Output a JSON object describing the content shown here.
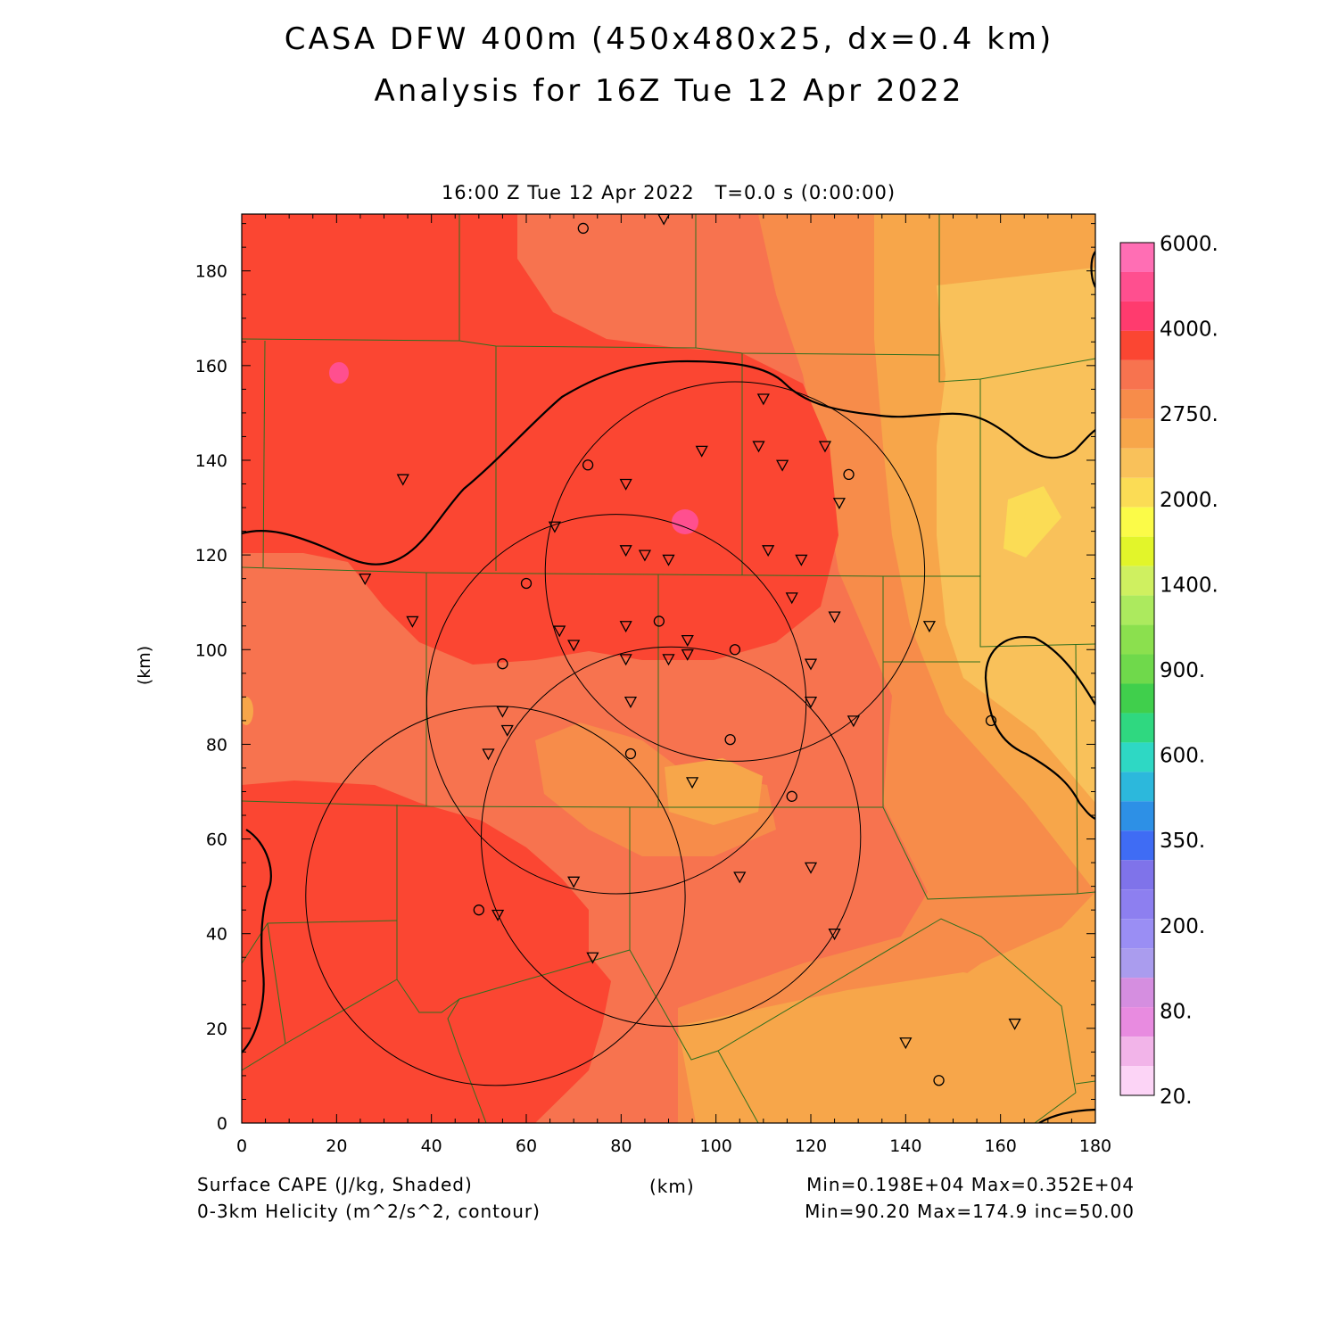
{
  "header": {
    "title_line1": "CASA DFW 400m (450x480x25, dx=0.4 km)",
    "title_line2": "Analysis for 16Z Tue 12 Apr 2022",
    "subtitle": "16:00 Z Tue 12 Apr 2022   T=0.0 s (0:00:00)"
  },
  "axes": {
    "x_label": "(km)",
    "y_label": "(km)",
    "x_range": [
      0,
      180
    ],
    "y_range": [
      0,
      192
    ],
    "x_ticks": [
      "0",
      "20",
      "40",
      "60",
      "80",
      "100",
      "120",
      "140",
      "160",
      "180"
    ],
    "y_ticks": [
      "0",
      "20",
      "40",
      "60",
      "80",
      "100",
      "120",
      "140",
      "160",
      "180"
    ]
  },
  "colorbar": {
    "labels": [
      "6000.",
      "4000.",
      "2750.",
      "2000.",
      "1400.",
      "900.",
      "600.",
      "350.",
      "200.",
      "80.",
      "20."
    ],
    "colors_top_to_bottom": [
      "#ff6eb4",
      "#ff4f8f",
      "#ff3b6e",
      "#fb4632",
      "#f7734f",
      "#f78c4a",
      "#f7a64a",
      "#f9c15a",
      "#fbdc55",
      "#fbfb48",
      "#e2f52a",
      "#cff060",
      "#acea5e",
      "#8be04e",
      "#6fd94b",
      "#40cf4c",
      "#2fd880",
      "#2ed8c4",
      "#2cb8dc",
      "#2d90e6",
      "#3f6cf4",
      "#7f73ea",
      "#8d7ff0",
      "#9a8ef4",
      "#aa9cee",
      "#d58ee0",
      "#e88be0",
      "#f2b4e9",
      "#fcd4f6"
    ]
  },
  "footer": {
    "left_line1": "Surface CAPE (J/kg, Shaded)",
    "left_line2": "0-3km Helicity (m^2/s^2, contour)",
    "center": "(km)",
    "right_line1": "Min=0.198E+04 Max=0.352E+04",
    "right_line2": "Min=90.20 Max=174.9 inc=50.00"
  },
  "map": {
    "radar_rings": [
      {
        "cx": 104.0,
        "cy": 116.5,
        "r": 40
      },
      {
        "cx": 79.0,
        "cy": 88.5,
        "r": 40
      },
      {
        "cx": 90.5,
        "cy": 60.5,
        "r": 40
      },
      {
        "cx": 53.5,
        "cy": 48.0,
        "r": 40
      }
    ],
    "stations_triangle": [
      [
        89,
        191
      ],
      [
        34,
        136
      ],
      [
        26,
        115
      ],
      [
        36,
        106
      ],
      [
        66,
        126
      ],
      [
        81,
        135
      ],
      [
        81,
        121
      ],
      [
        85,
        120
      ],
      [
        90,
        119
      ],
      [
        67,
        104
      ],
      [
        70,
        101
      ],
      [
        81,
        105
      ],
      [
        94,
        102
      ],
      [
        94,
        99
      ],
      [
        90,
        98
      ],
      [
        81,
        98
      ],
      [
        82,
        89
      ],
      [
        55,
        87
      ],
      [
        56,
        83
      ],
      [
        52,
        78
      ],
      [
        95,
        72
      ],
      [
        110,
        153
      ],
      [
        109,
        143
      ],
      [
        97,
        142
      ],
      [
        114,
        139
      ],
      [
        123,
        143
      ],
      [
        126,
        131
      ],
      [
        111,
        121
      ],
      [
        118,
        119
      ],
      [
        116,
        111
      ],
      [
        125,
        107
      ],
      [
        145,
        105
      ],
      [
        120,
        97
      ],
      [
        120,
        89
      ],
      [
        129,
        85
      ],
      [
        70,
        51
      ],
      [
        105,
        52
      ],
      [
        120,
        54
      ],
      [
        125,
        40
      ],
      [
        74,
        35
      ],
      [
        54,
        44
      ],
      [
        140,
        17
      ],
      [
        163,
        21
      ]
    ],
    "stations_circle": [
      [
        72,
        189
      ],
      [
        73,
        139
      ],
      [
        60,
        114
      ],
      [
        55,
        97
      ],
      [
        88,
        106
      ],
      [
        104,
        100
      ],
      [
        128,
        137
      ],
      [
        103,
        81
      ],
      [
        82,
        78
      ],
      [
        116,
        69
      ],
      [
        50,
        45
      ],
      [
        147,
        9
      ],
      [
        158,
        85
      ]
    ]
  }
}
